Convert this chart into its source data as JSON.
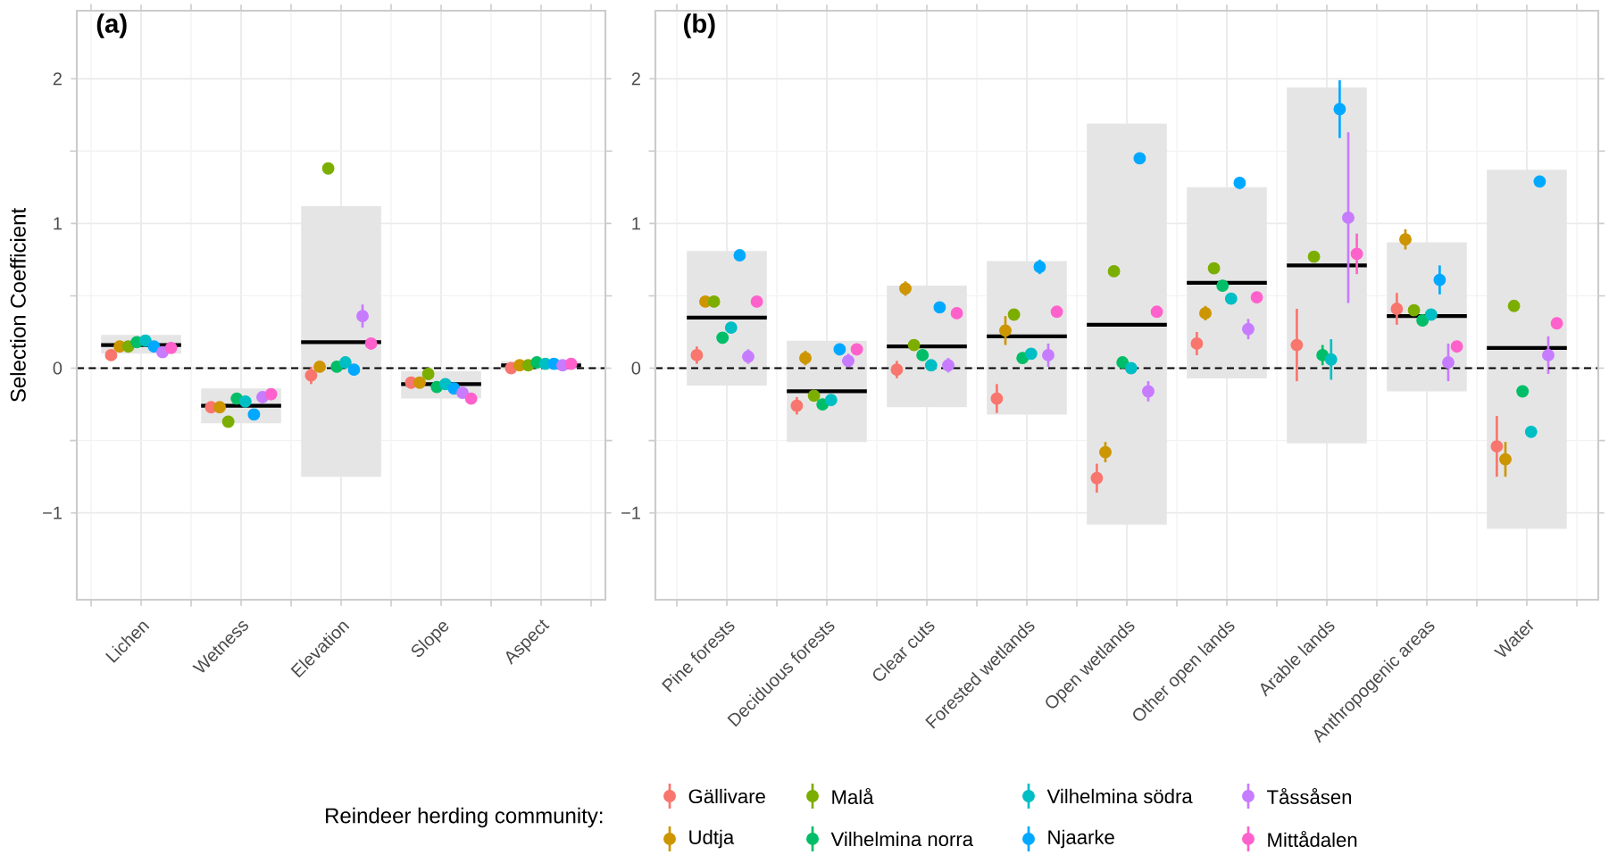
{
  "chart_data": [
    {
      "type": "scatter",
      "title": "(a)",
      "ylabel": "Selection Coefficient",
      "categories": [
        "Lichen",
        "Wetness",
        "Elevation",
        "Slope",
        "Aspect"
      ],
      "ylim": [
        -1.6,
        2.47
      ],
      "yticks": [
        {
          "value": -1,
          "label": "−1"
        },
        0,
        1,
        2
      ],
      "grid": true,
      "marker": "circle",
      "ref_lines": [
        {
          "axis": "y",
          "value": 0,
          "line_style": "dashed",
          "color": "#000000"
        }
      ],
      "series": [
        {
          "type": "box",
          "color": "#e5e5e5",
          "boxes": [
            {
              "low": 0.1,
              "q1": 0.1,
              "median": 0.16,
              "q3": 0.23,
              "high": 0.23
            },
            {
              "low": -0.38,
              "q1": -0.38,
              "median": -0.26,
              "q3": -0.14,
              "high": -0.14
            },
            {
              "low": -0.75,
              "q1": -0.75,
              "median": 0.18,
              "q3": 1.12,
              "high": 1.12
            },
            {
              "low": -0.21,
              "q1": -0.21,
              "median": -0.11,
              "q3": -0.02,
              "high": -0.02
            },
            {
              "low": -0.01,
              "q1": -0.01,
              "median": 0.02,
              "q3": 0.05,
              "high": 0.05
            }
          ]
        },
        {
          "color": "#f8766d",
          "values": [
            0.09,
            -0.27,
            -0.05,
            -0.1,
            0.0
          ],
          "errors": [
            null,
            null,
            0.06,
            null,
            null
          ]
        },
        {
          "color": "#cd9600",
          "values": [
            0.15,
            -0.27,
            0.01,
            -0.1,
            0.02
          ]
        },
        {
          "color": "#7cae00",
          "values": [
            0.15,
            -0.37,
            1.38,
            -0.04,
            0.02
          ]
        },
        {
          "color": "#00be67",
          "values": [
            0.18,
            -0.21,
            0.01,
            -0.13,
            0.04
          ]
        },
        {
          "color": "#00bfc4",
          "values": [
            0.19,
            -0.23,
            0.04,
            -0.11,
            0.03
          ]
        },
        {
          "color": "#00a9ff",
          "values": [
            0.15,
            -0.32,
            -0.01,
            -0.14,
            0.03
          ]
        },
        {
          "color": "#c77cff",
          "values": [
            0.11,
            -0.2,
            0.36,
            -0.17,
            0.02
          ],
          "errors": [
            null,
            null,
            0.08,
            null,
            null
          ]
        },
        {
          "color": "#ff61cc",
          "values": [
            0.14,
            -0.18,
            0.17,
            -0.21,
            0.03
          ]
        }
      ]
    },
    {
      "type": "scatter",
      "title": "(b)",
      "legend": "bottom",
      "legend_title": "Reindeer herding community:",
      "categories": [
        "Pine forests",
        "Deciduous forests",
        "Clear cuts",
        "Forested wetlands",
        "Open wetlands",
        "Other open lands",
        "Arable lands",
        "Anthropogenic areas",
        "Water"
      ],
      "ylim": [
        -1.6,
        2.47
      ],
      "yticks": [
        {
          "value": -1,
          "label": "−1"
        },
        0,
        1,
        2
      ],
      "grid": true,
      "marker": "circle",
      "ref_lines": [
        {
          "axis": "y",
          "value": 0,
          "line_style": "dashed",
          "color": "#000000"
        }
      ],
      "series": [
        {
          "type": "box",
          "color": "#e5e5e5",
          "boxes": [
            {
              "low": -0.12,
              "q1": -0.12,
              "median": 0.35,
              "q3": 0.81,
              "high": 0.81
            },
            {
              "low": -0.51,
              "q1": -0.51,
              "median": -0.16,
              "q3": 0.19,
              "high": 0.19
            },
            {
              "low": -0.27,
              "q1": -0.27,
              "median": 0.15,
              "q3": 0.57,
              "high": 0.57
            },
            {
              "low": -0.32,
              "q1": -0.32,
              "median": 0.22,
              "q3": 0.74,
              "high": 0.74
            },
            {
              "low": -1.08,
              "q1": -1.08,
              "median": 0.3,
              "q3": 1.69,
              "high": 1.69
            },
            {
              "low": -0.07,
              "q1": -0.07,
              "median": 0.59,
              "q3": 1.25,
              "high": 1.25
            },
            {
              "low": -0.52,
              "q1": -0.52,
              "median": 0.71,
              "q3": 1.94,
              "high": 1.94
            },
            {
              "low": -0.16,
              "q1": -0.16,
              "median": 0.36,
              "q3": 0.87,
              "high": 0.87
            },
            {
              "low": -1.11,
              "q1": -1.11,
              "median": 0.14,
              "q3": 1.37,
              "high": 1.37
            }
          ]
        },
        {
          "name": "Gällivare",
          "color": "#f8766d",
          "values": [
            0.09,
            -0.26,
            -0.01,
            -0.21,
            -0.76,
            0.17,
            0.16,
            0.41,
            -0.54
          ],
          "errors": [
            0.06,
            0.06,
            0.06,
            0.1,
            0.1,
            0.08,
            0.25,
            0.11,
            0.21
          ]
        },
        {
          "name": "Udtja",
          "color": "#cd9600",
          "values": [
            0.46,
            0.07,
            0.55,
            0.26,
            -0.58,
            0.38,
            null,
            0.89,
            -0.63
          ],
          "errors": [
            null,
            0.05,
            0.05,
            0.1,
            0.07,
            0.05,
            null,
            0.07,
            0.12
          ]
        },
        {
          "name": "Malå",
          "color": "#7cae00",
          "values": [
            0.46,
            -0.19,
            0.16,
            0.37,
            0.67,
            0.69,
            0.77,
            0.4,
            0.43
          ]
        },
        {
          "name": "Vilhelmina norra",
          "color": "#00be67",
          "values": [
            0.21,
            -0.25,
            0.09,
            0.07,
            0.04,
            0.57,
            0.09,
            0.33,
            -0.16
          ],
          "errors": [
            null,
            null,
            null,
            null,
            null,
            null,
            0.07,
            null,
            null
          ]
        },
        {
          "name": "Vilhelmina södra",
          "color": "#00bfc4",
          "values": [
            0.28,
            -0.22,
            0.02,
            0.1,
            0.0,
            0.48,
            0.06,
            0.37,
            -0.44
          ],
          "errors": [
            null,
            null,
            null,
            null,
            null,
            null,
            0.14,
            null,
            null
          ]
        },
        {
          "name": "Njaarke",
          "color": "#00a9ff",
          "values": [
            0.78,
            0.13,
            0.42,
            0.7,
            1.45,
            1.28,
            1.79,
            0.61,
            1.29
          ],
          "errors": [
            0.03,
            0.04,
            null,
            0.05,
            0.04,
            0.03,
            0.2,
            0.1,
            0.04
          ]
        },
        {
          "name": "Tåssåsen",
          "color": "#c77cff",
          "values": [
            0.08,
            0.05,
            0.02,
            0.09,
            -0.16,
            0.27,
            1.04,
            0.04,
            0.09
          ],
          "errors": [
            0.05,
            0.05,
            0.05,
            0.08,
            0.07,
            0.07,
            0.59,
            0.13,
            0.13
          ]
        },
        {
          "name": "Mittådalen",
          "color": "#ff61cc",
          "values": [
            0.46,
            0.13,
            0.38,
            0.39,
            0.39,
            0.49,
            0.79,
            0.15,
            0.31
          ],
          "errors": [
            null,
            null,
            null,
            null,
            null,
            null,
            0.14,
            null,
            null
          ]
        }
      ]
    }
  ]
}
